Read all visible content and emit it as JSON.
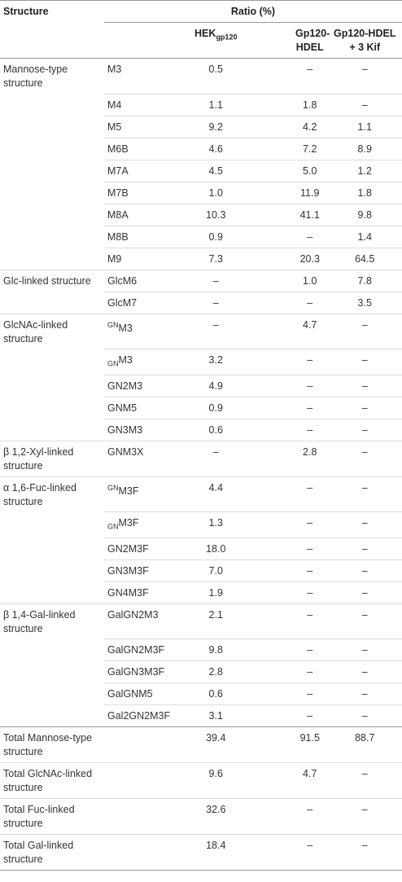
{
  "header": {
    "structure": "Structure",
    "ratio": "Ratio (%)",
    "columns": [
      {
        "text": "HEK",
        "sub": "gp120"
      },
      {
        "text": "Gp120-HDEL"
      },
      {
        "text": "Gp120-HDEL + 3 Kif"
      }
    ]
  },
  "groups": [
    {
      "label": "Mannose-type structure",
      "rows": [
        {
          "name": "M3",
          "values": [
            "0.5",
            "–",
            "–"
          ]
        },
        {
          "name": "M4",
          "values": [
            "1.1",
            "1.8",
            "–"
          ]
        },
        {
          "name": "M5",
          "values": [
            "9.2",
            "4.2",
            "1.1"
          ]
        },
        {
          "name": "M6B",
          "values": [
            "4.6",
            "7.2",
            "8.9"
          ]
        },
        {
          "name": "M7A",
          "values": [
            "4.5",
            "5.0",
            "1.2"
          ]
        },
        {
          "name": "M7B",
          "values": [
            "1.0",
            "11.9",
            "1.8"
          ]
        },
        {
          "name": "M8A",
          "values": [
            "10.3",
            "41.1",
            "9.8"
          ]
        },
        {
          "name": "M8B",
          "values": [
            "0.9",
            "–",
            "1.4"
          ]
        },
        {
          "name": "M9",
          "values": [
            "7.3",
            "20.3",
            "64.5"
          ]
        }
      ]
    },
    {
      "label": "Glc-linked structure",
      "rows": [
        {
          "name": "GlcM6",
          "values": [
            "–",
            "1.0",
            "7.8"
          ]
        },
        {
          "name": "GlcM7",
          "values": [
            "–",
            "–",
            "3.5"
          ]
        }
      ]
    },
    {
      "label": "GlcNAc-linked structure",
      "rows": [
        {
          "name_sup": "GN",
          "name": "M3",
          "values": [
            "–",
            "4.7",
            "–"
          ]
        },
        {
          "name_sub": "GN",
          "name": "M3",
          "values": [
            "3.2",
            "–",
            "–"
          ]
        },
        {
          "name": "GN2M3",
          "values": [
            "4.9",
            "–",
            "–"
          ]
        },
        {
          "name": "GNM5",
          "values": [
            "0.9",
            "–",
            "–"
          ]
        },
        {
          "name": "GN3M3",
          "values": [
            "0.6",
            "–",
            "–"
          ]
        }
      ]
    },
    {
      "label": "β 1,2-Xyl-linked structure",
      "rows": [
        {
          "name": "GNM3X",
          "values": [
            "–",
            "2.8",
            "–"
          ]
        }
      ]
    },
    {
      "label": "α 1,6-Fuc-linked structure",
      "rows": [
        {
          "name_sup": "GN",
          "name": "M3F",
          "values": [
            "4.4",
            "–",
            "–"
          ]
        },
        {
          "name_sub": "GN",
          "name": "M3F",
          "values": [
            "1.3",
            "–",
            "–"
          ]
        },
        {
          "name": "GN2M3F",
          "values": [
            "18.0",
            "–",
            "–"
          ]
        },
        {
          "name": "GN3M3F",
          "values": [
            "7.0",
            "–",
            "–"
          ]
        },
        {
          "name": "GN4M3F",
          "values": [
            "1.9",
            "–",
            "–"
          ]
        }
      ]
    },
    {
      "label": "β 1,4-Gal-linked structure",
      "rows": [
        {
          "name": "GalGN2M3",
          "values": [
            "2.1",
            "–",
            "–"
          ]
        },
        {
          "name": "GalGN2M3F",
          "values": [
            "9.8",
            "–",
            "–"
          ]
        },
        {
          "name": "GalGN3M3F",
          "values": [
            "2.8",
            "–",
            "–"
          ]
        },
        {
          "name": "GalGNM5",
          "values": [
            "0.6",
            "–",
            "–"
          ]
        },
        {
          "name": "Gal2GN2M3F",
          "values": [
            "3.1",
            "–",
            "–"
          ]
        }
      ]
    }
  ],
  "totals": [
    {
      "label": "Total Mannose-type structure",
      "values": [
        "39.4",
        "91.5",
        "88.7"
      ]
    },
    {
      "label": "Total GlcNAc-linked structure",
      "values": [
        "9.6",
        "4.7",
        "–"
      ]
    },
    {
      "label": "Total Fuc-linked structure",
      "values": [
        "32.6",
        "–",
        "–"
      ]
    },
    {
      "label": "Total Gal-linked structure",
      "values": [
        "18.4",
        "–",
        "–"
      ]
    }
  ]
}
